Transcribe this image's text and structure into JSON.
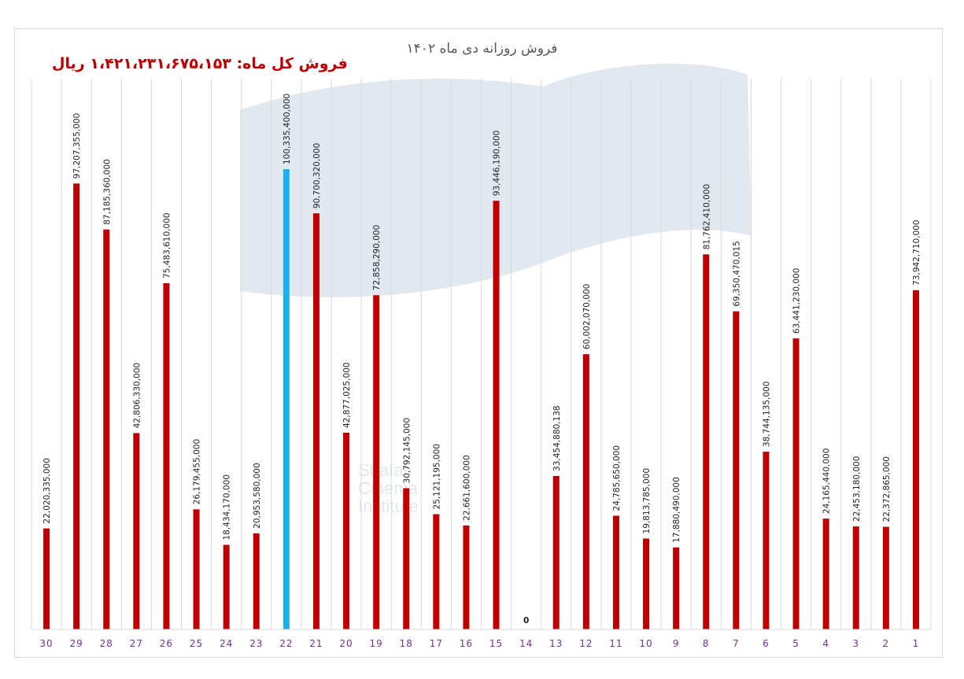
{
  "title": "فروش روزانه دی ماه ۱۴۰۲",
  "total_label": "فروش کل ماه: ۱،۴۲۱،۲۳۱،۶۷۵،۱۵۳ ریال",
  "watermark": {
    "text_lines": [
      "Shafaf",
      "Cinema",
      "Institute"
    ]
  },
  "colors": {
    "bar": "#c00000",
    "highlight": "#1ab0e8",
    "grid": "#d9d9d9",
    "tick": "#7030a0"
  },
  "chart_data": {
    "type": "bar",
    "title": "فروش روزانه دی ماه ۱۴۰۲",
    "x_order": "right-to-left",
    "categories": [
      "1",
      "2",
      "3",
      "4",
      "5",
      "6",
      "7",
      "8",
      "9",
      "10",
      "11",
      "12",
      "13",
      "14",
      "15",
      "16",
      "17",
      "18",
      "19",
      "20",
      "21",
      "22",
      "23",
      "24",
      "25",
      "26",
      "27",
      "28",
      "29",
      "30"
    ],
    "values": [
      73942710000,
      22372865000,
      22453180000,
      24165440000,
      63441230000,
      38744135000,
      69350470015,
      81762410000,
      17880490000,
      19813785000,
      24785650000,
      60002070000,
      33454880138,
      0,
      93446190000,
      22661600000,
      25121195000,
      30792145000,
      72858290000,
      42877025000,
      90700320000,
      100335400000,
      20953580000,
      18434170000,
      26179455000,
      75483610000,
      42806330000,
      87185360000,
      97207355000,
      22020335000
    ],
    "labels": [
      "73,942,710,000",
      "22,372,865,000",
      "22,453,180,000",
      "24,165,440,000",
      "63,441,230,000",
      "38,744,135,000",
      "69,350,470,015",
      "81,762,410,000",
      "17,880,490,000",
      "19,813,785,000",
      "24,785,650,000",
      "60,002,070,000",
      "33,454,880,138",
      "0",
      "93,446,190,000",
      "22,661,600,000",
      "25,121,195,000",
      "30,792,145,000",
      "72,858,290,000",
      "42,877,025,000",
      "90,700,320,000",
      "100,335,400,000",
      "20,953,580,000",
      "18,434,170,000",
      "26,179,455,000",
      "75,483,610,000",
      "42,806,330,000",
      "87,185,360,000",
      "97,207,355,000",
      "22,020,335,000"
    ],
    "highlight_category": "22",
    "ylim": [
      0,
      100335400000
    ],
    "grid": true,
    "legend": "none"
  }
}
